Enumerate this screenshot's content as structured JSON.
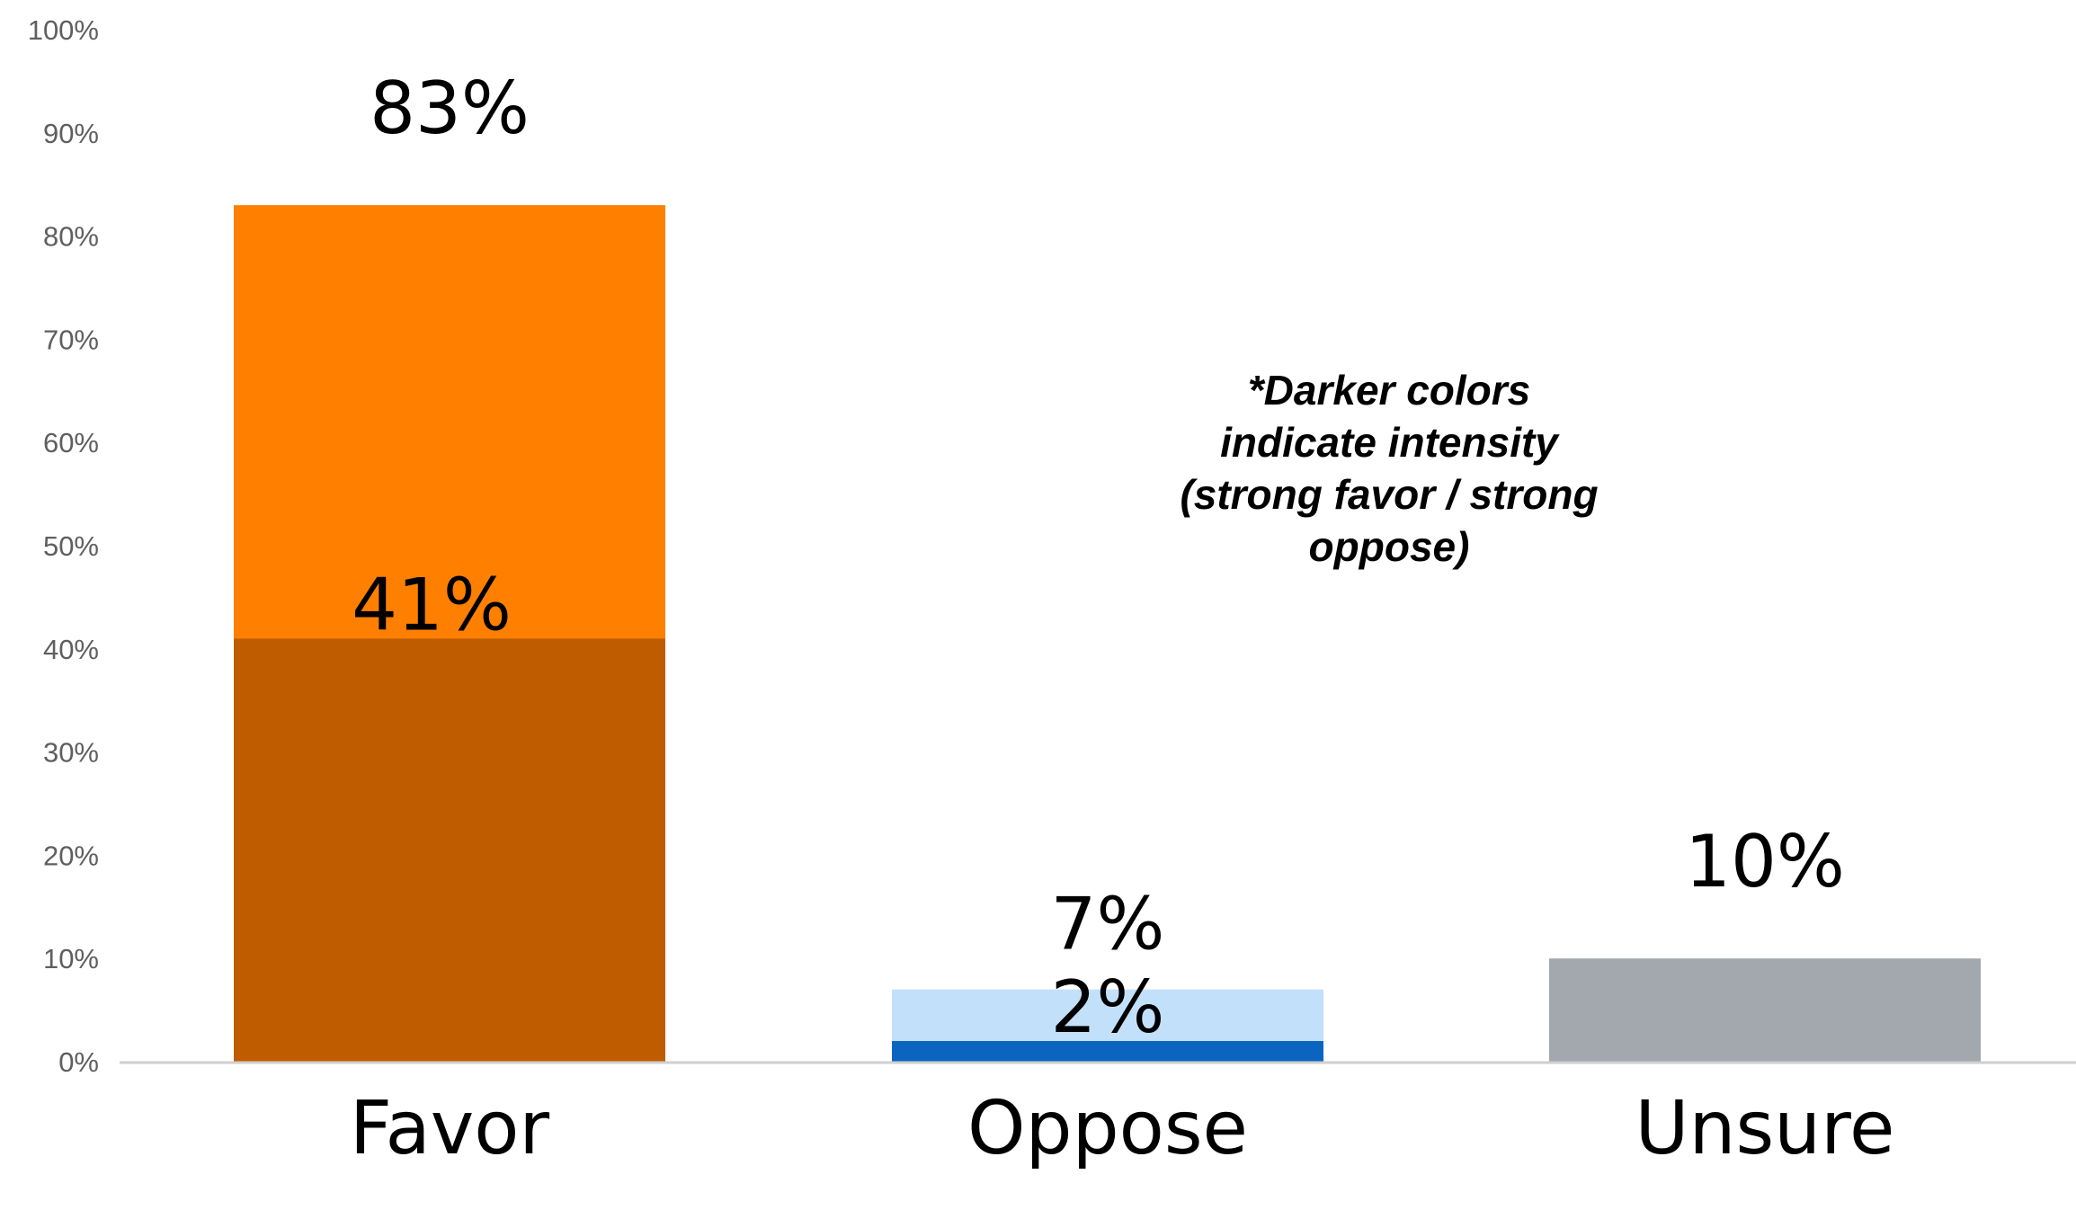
{
  "chart_data": {
    "type": "bar",
    "stacked": true,
    "categories": [
      "Favor",
      "Oppose",
      "Unsure"
    ],
    "bars": [
      {
        "category": "Favor",
        "total": 83,
        "total_label": "83%",
        "strong": 41,
        "strong_label": "41%",
        "color_light": "#FF8000",
        "color_dark": "#BF5C00"
      },
      {
        "category": "Oppose",
        "total": 7,
        "total_label": "7%",
        "strong": 2,
        "strong_label": "2%",
        "color_light": "#C3E0FA",
        "color_dark": "#0A64C0"
      },
      {
        "category": "Unsure",
        "total": 10,
        "total_label": "10%",
        "strong": null,
        "strong_label": "",
        "color_light": "#A3A7AE",
        "color_dark": null
      }
    ],
    "ylim": [
      0,
      100
    ],
    "yticks": [
      "0%",
      "10%",
      "20%",
      "30%",
      "40%",
      "50%",
      "60%",
      "70%",
      "80%",
      "90%",
      "100%"
    ],
    "grid": false,
    "annotation": [
      "*Darker colors",
      "indicate intensity",
      "(strong favor / strong",
      "oppose)"
    ],
    "baseline_color": "#CFCFCF",
    "title": "",
    "xlabel": "",
    "ylabel": ""
  }
}
